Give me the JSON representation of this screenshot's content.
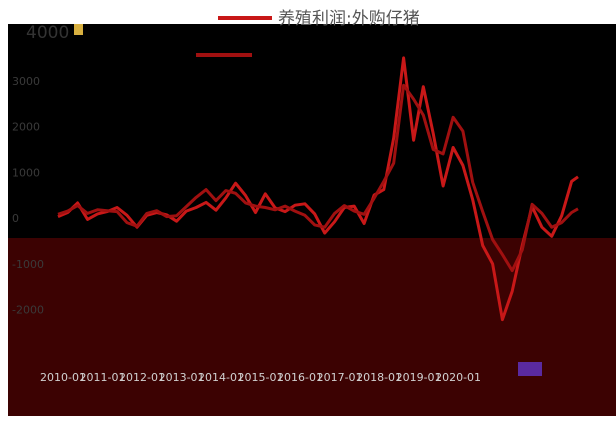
{
  "chart_data": {
    "type": "line",
    "title": "",
    "xlabel": "",
    "ylabel": "",
    "ylim": [
      -4000,
      4000
    ],
    "yticks": [
      4000,
      3000,
      2000,
      1000,
      0,
      -1000,
      -2000
    ],
    "top_tick_label": "4000",
    "grid": false,
    "legend_position": "top-center",
    "x_ticks": [
      "2010-01",
      "2011-01",
      "2012-01",
      "2013-01",
      "2014-01",
      "2015-01",
      "2016-01",
      "2017-01",
      "2018-01",
      "2019-01",
      "2020-01"
    ],
    "series": [
      {
        "name": "养殖利润:外购仔猪",
        "color": "#c81818",
        "values": [
          {
            "x": "2010-01",
            "y": 30
          },
          {
            "x": "2010-04",
            "y": 120
          },
          {
            "x": "2010-07",
            "y": 330
          },
          {
            "x": "2010-10",
            "y": -30
          },
          {
            "x": "2011-01",
            "y": 90
          },
          {
            "x": "2011-04",
            "y": 140
          },
          {
            "x": "2011-07",
            "y": 230
          },
          {
            "x": "2011-10",
            "y": 60
          },
          {
            "x": "2012-01",
            "y": -200
          },
          {
            "x": "2012-04",
            "y": 60
          },
          {
            "x": "2012-07",
            "y": 120
          },
          {
            "x": "2012-10",
            "y": 70
          },
          {
            "x": "2013-01",
            "y": -70
          },
          {
            "x": "2013-04",
            "y": 150
          },
          {
            "x": "2013-07",
            "y": 230
          },
          {
            "x": "2013-10",
            "y": 340
          },
          {
            "x": "2014-01",
            "y": 170
          },
          {
            "x": "2014-04",
            "y": 440
          },
          {
            "x": "2014-07",
            "y": 760
          },
          {
            "x": "2014-10",
            "y": 490
          },
          {
            "x": "2015-01",
            "y": 120
          },
          {
            "x": "2015-04",
            "y": 530
          },
          {
            "x": "2015-07",
            "y": 220
          },
          {
            "x": "2015-10",
            "y": 140
          },
          {
            "x": "2016-01",
            "y": 280
          },
          {
            "x": "2016-04",
            "y": 310
          },
          {
            "x": "2016-07",
            "y": 90
          },
          {
            "x": "2016-10",
            "y": -330
          },
          {
            "x": "2017-01",
            "y": -80
          },
          {
            "x": "2017-04",
            "y": 230
          },
          {
            "x": "2017-07",
            "y": 260
          },
          {
            "x": "2017-10",
            "y": -120
          },
          {
            "x": "2018-01",
            "y": 500
          },
          {
            "x": "2018-04",
            "y": 620
          },
          {
            "x": "2018-07",
            "y": 1750
          },
          {
            "x": "2018-10",
            "y": 3500
          },
          {
            "x": "2019-01",
            "y": 1700
          },
          {
            "x": "2019-04",
            "y": 2870
          },
          {
            "x": "2019-07",
            "y": 1850
          },
          {
            "x": "2019-10",
            "y": 700
          },
          {
            "x": "2020-01",
            "y": 1540
          },
          {
            "x": "2020-04",
            "y": 1150
          },
          {
            "x": "2020-07",
            "y": 400
          },
          {
            "x": "2020-10",
            "y": -600
          },
          {
            "x": "2021-01",
            "y": -1000
          },
          {
            "x": "2021-04",
            "y": -2220
          },
          {
            "x": "2021-07",
            "y": -1600
          },
          {
            "x": "2021-10",
            "y": -600
          },
          {
            "x": "2022-01",
            "y": 250
          },
          {
            "x": "2022-04",
            "y": -200
          },
          {
            "x": "2022-07",
            "y": -400
          },
          {
            "x": "2022-10",
            "y": 50
          },
          {
            "x": "2023-01",
            "y": 800
          },
          {
            "x": "2023-03",
            "y": 900
          }
        ]
      },
      {
        "name": "",
        "color": "#a01010",
        "values": [
          {
            "x": "2010-01",
            "y": 80
          },
          {
            "x": "2010-04",
            "y": 150
          },
          {
            "x": "2010-07",
            "y": 270
          },
          {
            "x": "2010-10",
            "y": 100
          },
          {
            "x": "2011-01",
            "y": 180
          },
          {
            "x": "2011-04",
            "y": 160
          },
          {
            "x": "2011-07",
            "y": 140
          },
          {
            "x": "2011-10",
            "y": -100
          },
          {
            "x": "2012-01",
            "y": -180
          },
          {
            "x": "2012-04",
            "y": 100
          },
          {
            "x": "2012-07",
            "y": 160
          },
          {
            "x": "2012-10",
            "y": 30
          },
          {
            "x": "2013-01",
            "y": 50
          },
          {
            "x": "2013-04",
            "y": 250
          },
          {
            "x": "2013-07",
            "y": 450
          },
          {
            "x": "2013-10",
            "y": 620
          },
          {
            "x": "2014-01",
            "y": 380
          },
          {
            "x": "2014-04",
            "y": 600
          },
          {
            "x": "2014-07",
            "y": 540
          },
          {
            "x": "2014-10",
            "y": 330
          },
          {
            "x": "2015-01",
            "y": 260
          },
          {
            "x": "2015-04",
            "y": 230
          },
          {
            "x": "2015-07",
            "y": 180
          },
          {
            "x": "2015-10",
            "y": 260
          },
          {
            "x": "2016-01",
            "y": 150
          },
          {
            "x": "2016-04",
            "y": 60
          },
          {
            "x": "2016-07",
            "y": -150
          },
          {
            "x": "2016-10",
            "y": -200
          },
          {
            "x": "2017-01",
            "y": 100
          },
          {
            "x": "2017-04",
            "y": 270
          },
          {
            "x": "2017-07",
            "y": 150
          },
          {
            "x": "2017-10",
            "y": 80
          },
          {
            "x": "2018-01",
            "y": 430
          },
          {
            "x": "2018-04",
            "y": 800
          },
          {
            "x": "2018-07",
            "y": 1200
          },
          {
            "x": "2018-10",
            "y": 2900
          },
          {
            "x": "2019-01",
            "y": 2600
          },
          {
            "x": "2019-04",
            "y": 2250
          },
          {
            "x": "2019-07",
            "y": 1500
          },
          {
            "x": "2019-10",
            "y": 1400
          },
          {
            "x": "2020-01",
            "y": 2200
          },
          {
            "x": "2020-04",
            "y": 1900
          },
          {
            "x": "2020-07",
            "y": 780
          },
          {
            "x": "2020-10",
            "y": 140
          },
          {
            "x": "2021-01",
            "y": -470
          },
          {
            "x": "2021-04",
            "y": -800
          },
          {
            "x": "2021-07",
            "y": -1150
          },
          {
            "x": "2021-10",
            "y": -700
          },
          {
            "x": "2022-01",
            "y": 300
          },
          {
            "x": "2022-04",
            "y": 100
          },
          {
            "x": "2022-07",
            "y": -200
          },
          {
            "x": "2022-10",
            "y": -100
          },
          {
            "x": "2023-01",
            "y": 120
          },
          {
            "x": "2023-03",
            "y": 200
          }
        ]
      }
    ]
  },
  "colors": {
    "background": "#ffffff",
    "panel": "#000000",
    "band": "#3c0202",
    "accent": "#c81818",
    "tick": "#cfcfcf",
    "badge": "#d8b040",
    "marker": "#5a2aa0"
  },
  "badge_label": "",
  "marker_label": ""
}
